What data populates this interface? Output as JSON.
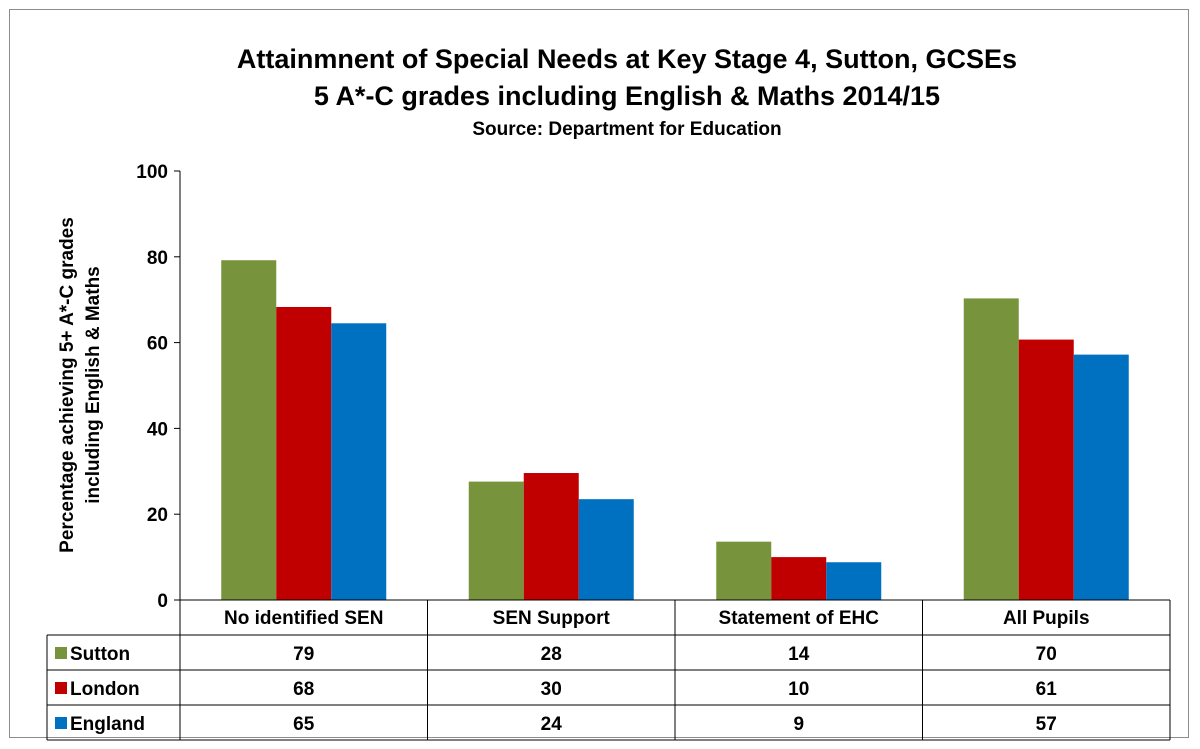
{
  "chart_data": {
    "type": "bar",
    "title": "Attainmnent of Special Needs at Key Stage 4, Sutton, GCSEs",
    "subtitle": "5 A*-C grades including English & Maths 2014/15",
    "source": "Source: Department for Education",
    "ylabel_line1": "Percentage achieving 5+ A*-C grades",
    "ylabel_line2": "including English & Maths",
    "ylim": [
      0,
      100
    ],
    "yticks": [
      "0",
      "20",
      "40",
      "60",
      "80",
      "100"
    ],
    "categories": [
      "No identified SEN",
      "SEN Support",
      "Statement of EHC",
      "All Pupils"
    ],
    "series": [
      {
        "name": "Sutton",
        "color": "#77933c",
        "values": [
          79,
          28,
          14,
          70
        ],
        "bar_values": [
          79.2,
          27.6,
          13.6,
          70.3
        ]
      },
      {
        "name": "London",
        "color": "#c00000",
        "values": [
          68,
          30,
          10,
          61
        ],
        "bar_values": [
          68.3,
          29.6,
          10.0,
          60.7
        ]
      },
      {
        "name": "England",
        "color": "#0070c0",
        "values": [
          65,
          24,
          9,
          57
        ],
        "bar_values": [
          64.5,
          23.5,
          8.8,
          57.2
        ]
      }
    ],
    "legend": "data-table"
  }
}
